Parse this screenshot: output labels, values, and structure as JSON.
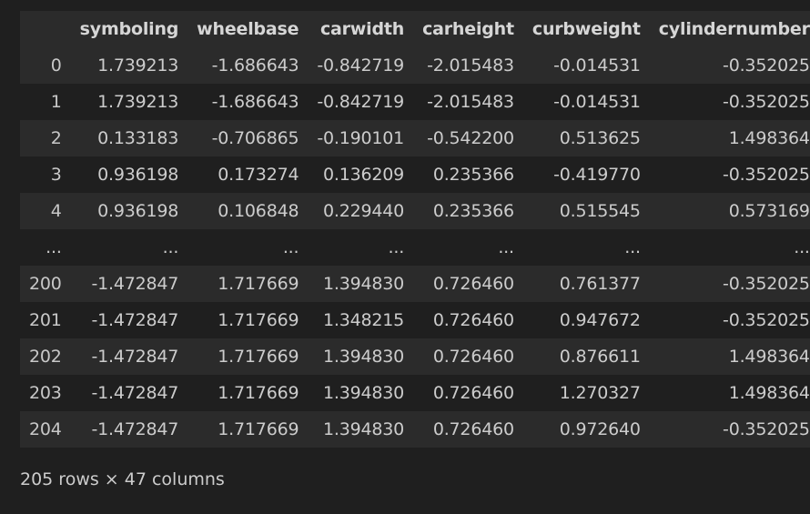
{
  "table": {
    "index_header": "",
    "columns": [
      "symboling",
      "wheelbase",
      "carwidth",
      "carheight",
      "curbweight",
      "cylindernumber"
    ],
    "rows": [
      {
        "index": "0",
        "cells": [
          "1.739213",
          "-1.686643",
          "-0.842719",
          "-2.015483",
          "-0.014531",
          "-0.352025"
        ]
      },
      {
        "index": "1",
        "cells": [
          "1.739213",
          "-1.686643",
          "-0.842719",
          "-2.015483",
          "-0.014531",
          "-0.352025"
        ]
      },
      {
        "index": "2",
        "cells": [
          "0.133183",
          "-0.706865",
          "-0.190101",
          "-0.542200",
          "0.513625",
          "1.498364"
        ]
      },
      {
        "index": "3",
        "cells": [
          "0.936198",
          "0.173274",
          "0.136209",
          "0.235366",
          "-0.419770",
          "-0.352025"
        ]
      },
      {
        "index": "4",
        "cells": [
          "0.936198",
          "0.106848",
          "0.229440",
          "0.235366",
          "0.515545",
          "0.573169"
        ]
      },
      {
        "index": "...",
        "cells": [
          "...",
          "...",
          "...",
          "...",
          "...",
          "..."
        ]
      },
      {
        "index": "200",
        "cells": [
          "-1.472847",
          "1.717669",
          "1.394830",
          "0.726460",
          "0.761377",
          "-0.352025"
        ]
      },
      {
        "index": "201",
        "cells": [
          "-1.472847",
          "1.717669",
          "1.348215",
          "0.726460",
          "0.947672",
          "-0.352025"
        ]
      },
      {
        "index": "202",
        "cells": [
          "-1.472847",
          "1.717669",
          "1.394830",
          "0.726460",
          "0.876611",
          "1.498364"
        ]
      },
      {
        "index": "203",
        "cells": [
          "-1.472847",
          "1.717669",
          "1.394830",
          "0.726460",
          "1.270327",
          "1.498364"
        ]
      },
      {
        "index": "204",
        "cells": [
          "-1.472847",
          "1.717669",
          "1.394830",
          "0.726460",
          "0.972640",
          "-0.352025"
        ]
      }
    ]
  },
  "shape_text": "205 rows × 47 columns",
  "colors": {
    "background": "#1f1f1f",
    "stripe": "#2b2b2b",
    "text": "#cccccc"
  }
}
